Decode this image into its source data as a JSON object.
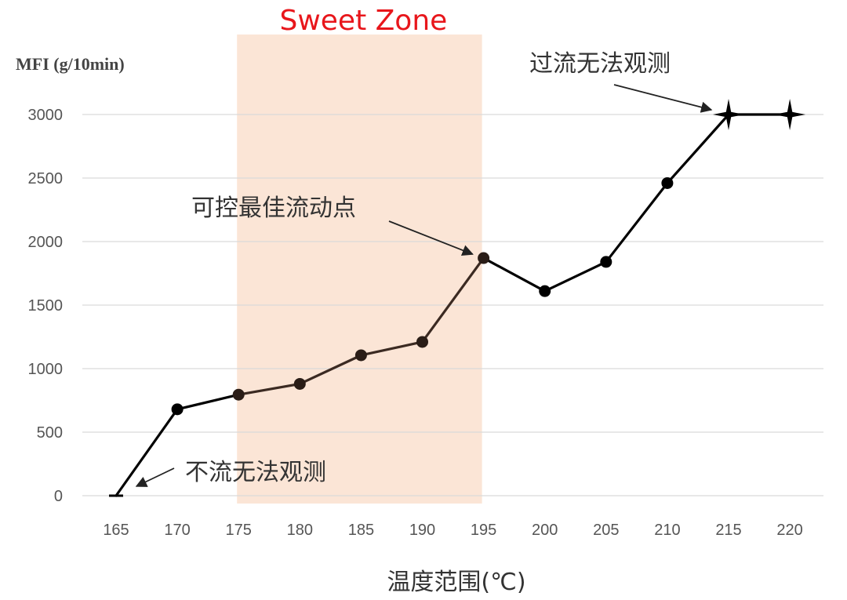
{
  "chart_data": {
    "type": "line",
    "title": "",
    "ylabel": "MFI (g/10min)",
    "xlabel": "温度范围(℃)",
    "x": [
      165,
      170,
      175,
      180,
      185,
      190,
      195,
      200,
      205,
      210,
      215,
      220
    ],
    "xticks": [
      "165",
      "170",
      "175",
      "180",
      "185",
      "190",
      "195",
      "200",
      "205",
      "210",
      "215",
      "220"
    ],
    "yticks": [
      "0",
      "500",
      "1000",
      "1500",
      "2000",
      "2500",
      "3000"
    ],
    "ylim": [
      0,
      3000
    ],
    "grid": true,
    "series": [
      {
        "values": [
          0,
          680,
          795,
          880,
          1105,
          1210,
          1870,
          1610,
          1840,
          2460,
          3000,
          3000
        ],
        "markers": [
          "dash",
          "circle",
          "circle",
          "circle",
          "circle",
          "circle",
          "circle",
          "circle",
          "circle",
          "circle",
          "star",
          "star"
        ]
      }
    ],
    "colors": {
      "line": "#000000",
      "zone_line": "#3b2a22",
      "zone_fill": "#fbe5d6",
      "zone_label": "#e8161b",
      "grid": "#d9d9d9"
    },
    "highlight_zone": {
      "label": "Sweet Zone",
      "x_range": [
        175,
        195
      ]
    },
    "annotations": [
      {
        "text": "过流无法观测",
        "target_x": 215,
        "target_y": 3000
      },
      {
        "text": "可控最佳流动点",
        "target_x": 195,
        "target_y": 1870
      },
      {
        "text": "不流无法观测",
        "target_x": 165,
        "target_y": 0
      }
    ]
  }
}
